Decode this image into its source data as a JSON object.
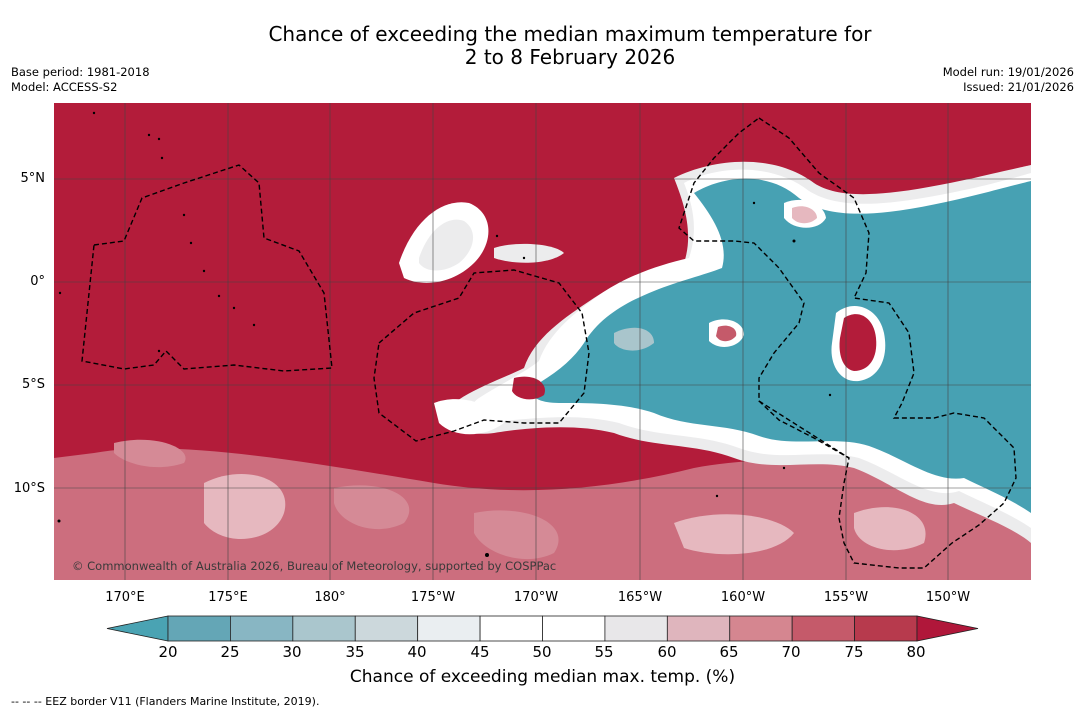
{
  "title": {
    "line1": "Chance of exceeding the median maximum temperature for",
    "line2": "2 to 8 February 2026"
  },
  "meta_left": {
    "base_period": "Base period: 1981-2018",
    "model": "Model: ACCESS-S2"
  },
  "meta_right": {
    "model_run": "Model run: 19/01/2026",
    "issued": "Issued: 21/01/2026"
  },
  "map": {
    "lat_labels": [
      "5°N",
      "0°",
      "5°S",
      "10°S"
    ],
    "lon_labels": [
      "170°E",
      "175°E",
      "180°",
      "175°W",
      "170°W",
      "165°W",
      "160°W",
      "155°W",
      "150°W"
    ],
    "copyright": "© Commonwealth of Australia 2026, Bureau of Meteorology, supported by COSPPac",
    "colors": {
      "warm": "#b31c3a",
      "warm_mid": "#cc6e7e",
      "warm_light": "#e6b8bf",
      "neutral": "#ffffff",
      "neutral_grey": "#ececed",
      "cool": "#47a1b3",
      "cool_light": "#a9c5cc",
      "eez": "#000000",
      "grid": "#444444"
    }
  },
  "colorbar": {
    "tick_labels": [
      "20",
      "25",
      "30",
      "35",
      "40",
      "45",
      "50",
      "55",
      "60",
      "65",
      "70",
      "75",
      "80"
    ],
    "title": "Chance of exceeding median max. temp. (%)",
    "colors": [
      "#64a6b6",
      "#88b6c3",
      "#aac6cd",
      "#ccd8dc",
      "#eaeef1",
      "#ffffff",
      "#ffffff",
      "#e8e7e9",
      "#dfb5bd",
      "#d58690",
      "#c55a6a",
      "#b73a4d"
    ],
    "low_color": "#4aa3b3",
    "high_color": "#b0173a"
  },
  "footnote": "--  --  -- EEZ border V11 (Flanders Marine Institute, 2019)."
}
